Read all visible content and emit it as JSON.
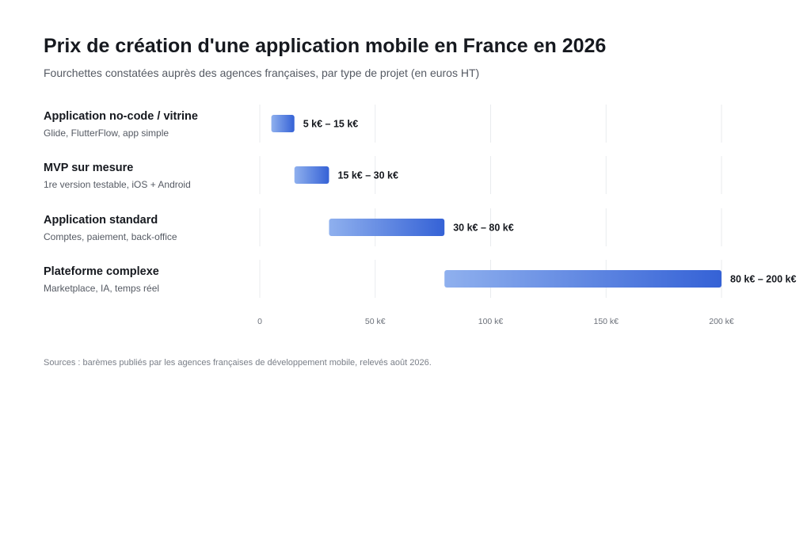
{
  "title": "Prix de création d'une application mobile en France en 2026",
  "subtitle": "Fourchettes constatées auprès des agences françaises, par type de projet (en euros HT)",
  "source": "Sources : barèmes publiés par les agences françaises de développement mobile, relevés août 2026.",
  "colors": {
    "bar_start": "#8fb0ee",
    "bar_end": "#3562d6",
    "grid": "#e9ebee"
  },
  "chart_data": {
    "type": "bar",
    "orientation": "horizontal",
    "value_unit": "k€",
    "xlim": [
      0,
      200
    ],
    "grid": true,
    "ticks": [
      {
        "value": 0,
        "label": "0"
      },
      {
        "value": 50,
        "label": "50 k€"
      },
      {
        "value": 100,
        "label": "100 k€"
      },
      {
        "value": 150,
        "label": "150 k€"
      },
      {
        "value": 200,
        "label": "200 k€"
      }
    ],
    "rows": [
      {
        "label": "Application no-code / vitrine",
        "description": "Glide, FlutterFlow, app simple",
        "min": 5,
        "max": 15,
        "range_label": "5 k€ – 15 k€"
      },
      {
        "label": "MVP sur mesure",
        "description": "1re version testable, iOS + Android",
        "min": 15,
        "max": 30,
        "range_label": "15 k€ – 30 k€"
      },
      {
        "label": "Application standard",
        "description": "Comptes, paiement, back-office",
        "min": 30,
        "max": 80,
        "range_label": "30 k€ – 80 k€"
      },
      {
        "label": "Plateforme complexe",
        "description": "Marketplace, IA, temps réel",
        "min": 80,
        "max": 200,
        "range_label": "80 k€ – 200 k€"
      }
    ]
  }
}
